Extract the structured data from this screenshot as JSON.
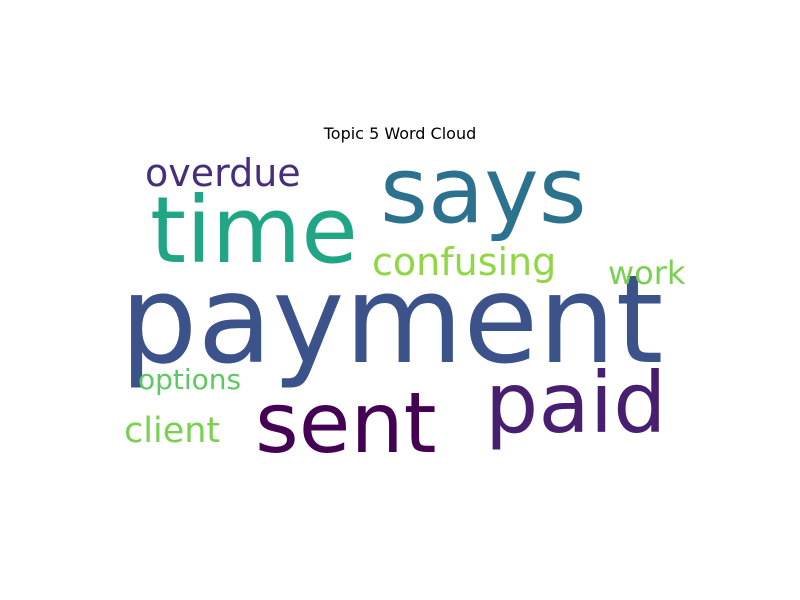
{
  "chart_data": {
    "type": "wordcloud",
    "title": "Topic 5 Word Cloud",
    "words": [
      {
        "text": "payment",
        "color": "#3b528b"
      },
      {
        "text": "says",
        "color": "#2c728e"
      },
      {
        "text": "time",
        "color": "#21a685"
      },
      {
        "text": "paid",
        "color": "#481f70"
      },
      {
        "text": "sent",
        "color": "#440154"
      },
      {
        "text": "overdue",
        "color": "#472d7b"
      },
      {
        "text": "confusing",
        "color": "#90d743"
      },
      {
        "text": "work",
        "color": "#7ad151"
      },
      {
        "text": "client",
        "color": "#7ad151"
      },
      {
        "text": "options",
        "color": "#5ec962"
      }
    ]
  }
}
